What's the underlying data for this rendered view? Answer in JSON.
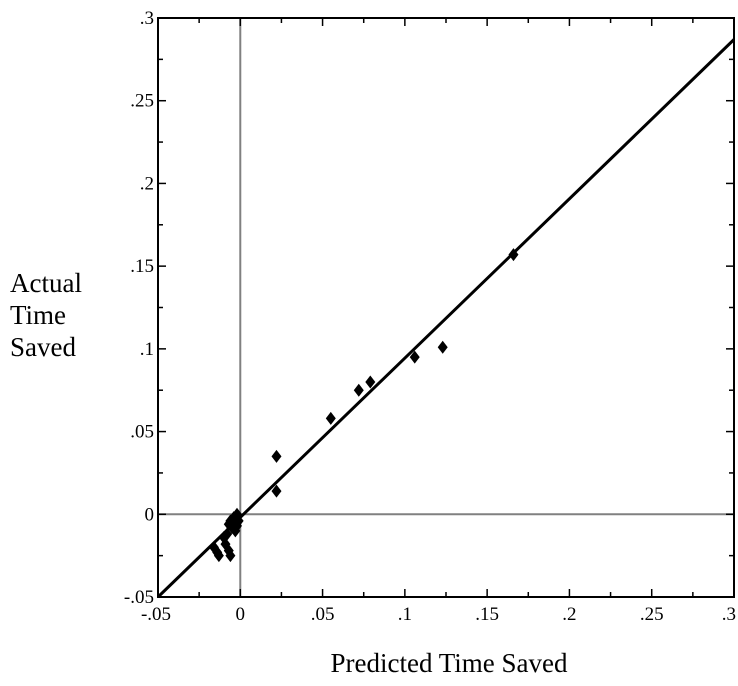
{
  "chart_data": {
    "type": "scatter",
    "title": "",
    "xlabel": "Predicted Time Saved",
    "ylabel_lines": [
      "Actual",
      "Time",
      "Saved"
    ],
    "xlim": [
      -0.05,
      0.3
    ],
    "ylim": [
      -0.05,
      0.3
    ],
    "x_tick_labels": [
      "-.05",
      "0",
      ".05",
      ".1",
      ".15",
      ".2",
      ".25",
      ".3"
    ],
    "x_tick_values": [
      -0.05,
      0,
      0.05,
      0.1,
      0.15,
      0.2,
      0.25,
      0.3
    ],
    "y_tick_labels": [
      "-.05",
      "0",
      ".05",
      ".1",
      ".15",
      ".2",
      ".25",
      ".3"
    ],
    "y_tick_values": [
      -0.05,
      0,
      0.05,
      0.1,
      0.15,
      0.2,
      0.25,
      0.3
    ],
    "grid": false,
    "reference_lines": {
      "x": 0,
      "y": 0
    },
    "points": [
      {
        "x": -0.016,
        "y": -0.02
      },
      {
        "x": -0.014,
        "y": -0.023
      },
      {
        "x": -0.013,
        "y": -0.025
      },
      {
        "x": -0.01,
        "y": -0.014
      },
      {
        "x": -0.009,
        "y": -0.018
      },
      {
        "x": -0.008,
        "y": -0.012
      },
      {
        "x": -0.007,
        "y": -0.022
      },
      {
        "x": -0.006,
        "y": -0.025
      },
      {
        "x": -0.007,
        "y": -0.006
      },
      {
        "x": -0.006,
        "y": -0.004
      },
      {
        "x": -0.005,
        "y": -0.008
      },
      {
        "x": -0.004,
        "y": -0.002
      },
      {
        "x": -0.003,
        "y": -0.01
      },
      {
        "x": -0.002,
        "y": -0.007
      },
      {
        "x": -0.002,
        "y": 0.0
      },
      {
        "x": -0.001,
        "y": -0.004
      },
      {
        "x": 0.022,
        "y": 0.035
      },
      {
        "x": 0.022,
        "y": 0.014
      },
      {
        "x": 0.055,
        "y": 0.058
      },
      {
        "x": 0.072,
        "y": 0.075
      },
      {
        "x": 0.079,
        "y": 0.08
      },
      {
        "x": 0.106,
        "y": 0.095
      },
      {
        "x": 0.123,
        "y": 0.101
      },
      {
        "x": 0.166,
        "y": 0.157
      }
    ],
    "fit_line": {
      "x": [
        -0.05,
        0.3
      ],
      "y": [
        -0.05,
        0.287
      ]
    },
    "colors": {
      "points": "#000000",
      "fit_line": "#000000",
      "reference_lines": "#808080",
      "frame": "#000000"
    }
  }
}
